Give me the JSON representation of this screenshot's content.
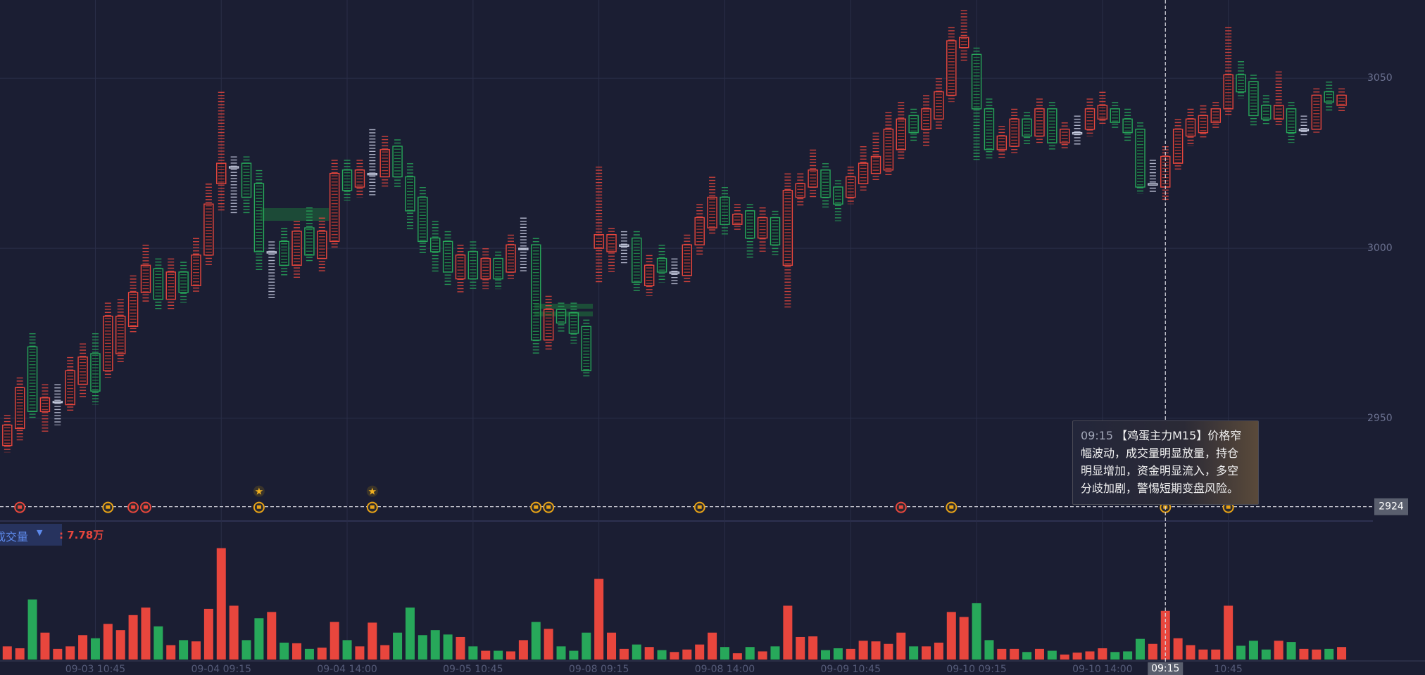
{
  "chart_data": {
    "type": "candlestick",
    "categories": [
      null,
      null,
      null,
      null,
      null,
      null,
      null,
      "09-03 10:45",
      null,
      null,
      null,
      null,
      null,
      null,
      null,
      null,
      null,
      "09-04 09:15",
      null,
      null,
      null,
      null,
      null,
      null,
      null,
      null,
      null,
      "09-04 14:00",
      null,
      null,
      null,
      null,
      null,
      null,
      null,
      null,
      null,
      "09-05 10:45",
      null,
      null,
      null,
      null,
      null,
      null,
      null,
      null,
      null,
      "09-08 09:15",
      null,
      null,
      null,
      null,
      null,
      null,
      null,
      null,
      null,
      "09-08 14:00",
      null,
      null,
      null,
      null,
      null,
      null,
      null,
      null,
      null,
      "09-09 10:45",
      null,
      null,
      null,
      null,
      null,
      null,
      null,
      null,
      null,
      "09-10 09:15",
      null,
      null,
      null,
      null,
      null,
      null,
      null,
      null,
      null,
      "09-10 14:00",
      null,
      null,
      null,
      null,
      null,
      null,
      null,
      null,
      null,
      "10:45",
      null,
      null,
      null,
      null,
      null,
      null,
      null,
      null,
      null
    ],
    "open": [
      2942,
      2947,
      2971,
      2952,
      2955,
      2954,
      2960,
      2969,
      2964,
      2969,
      2977,
      2987,
      2994,
      2985,
      2993,
      2989,
      2998,
      3019,
      3024,
      3025,
      3019,
      2999,
      3002,
      2995,
      3006,
      2997,
      3002,
      3023,
      3018,
      3022,
      3021,
      3030,
      3021,
      3015,
      3003,
      3002,
      2991,
      2999,
      2991,
      2997,
      2993,
      3000,
      3001,
      2973,
      2982,
      2981,
      2977,
      3000,
      2999,
      3001,
      3003,
      2989,
      2997,
      2993,
      2992,
      3001,
      3006,
      3015,
      3007,
      3011,
      3003,
      3009,
      2995,
      3015,
      3018,
      3023,
      3018,
      3015,
      3019,
      3022,
      3023,
      3029,
      3039,
      3035,
      3038,
      3045,
      3059,
      3057,
      3041,
      3029,
      3030,
      3038,
      3033,
      3041,
      3031,
      3034,
      3035,
      3038,
      3041,
      3038,
      3035,
      3019,
      3018,
      3025,
      3033,
      3034,
      3037,
      3041,
      3051,
      3049,
      3042,
      3038,
      3041,
      3035,
      3035,
      3046,
      3042
    ],
    "high": [
      2951,
      2962,
      2975,
      2960,
      2960,
      2968,
      2972,
      2975,
      2984,
      2985,
      2992,
      3001,
      2997,
      2997,
      2996,
      3003,
      3019,
      3046,
      3027,
      3027,
      3023,
      3002,
      3006,
      3008,
      3012,
      3009,
      3026,
      3026,
      3026,
      3035,
      3033,
      3032,
      3025,
      3018,
      3008,
      3005,
      3001,
      3002,
      3000,
      2999,
      3004,
      3009,
      3003,
      2986,
      2984,
      2984,
      2979,
      3024,
      3006,
      3005,
      3005,
      2998,
      3001,
      2997,
      3004,
      3013,
      3021,
      3018,
      3013,
      3013,
      3012,
      3011,
      3022,
      3022,
      3029,
      3025,
      3020,
      3024,
      3030,
      3034,
      3040,
      3043,
      3041,
      3045,
      3050,
      3065,
      3070,
      3059,
      3044,
      3036,
      3041,
      3040,
      3044,
      3043,
      3037,
      3039,
      3044,
      3046,
      3043,
      3041,
      3037,
      3026,
      3030,
      3038,
      3041,
      3042,
      3043,
      3065,
      3055,
      3051,
      3045,
      3052,
      3043,
      3039,
      3047,
      3049,
      3047
    ],
    "low": [
      2940,
      2943,
      2950,
      2946,
      2948,
      2952,
      2956,
      2954,
      2962,
      2966,
      2975,
      2984,
      2982,
      2982,
      2984,
      2987,
      2995,
      3011,
      3010,
      3010,
      2993,
      2985,
      2992,
      2991,
      2996,
      2993,
      3000,
      3014,
      3015,
      3015,
      3018,
      3018,
      3005,
      2998,
      2993,
      2989,
      2987,
      2988,
      2988,
      2988,
      2991,
      2993,
      2969,
      2970,
      2975,
      2972,
      2962,
      2990,
      2993,
      2995,
      2987,
      2986,
      2990,
      2989,
      2990,
      2998,
      3004,
      3004,
      3005,
      2997,
      2999,
      2998,
      2982,
      3012,
      3015,
      3012,
      3008,
      3013,
      3017,
      3020,
      3021,
      3026,
      3031,
      3030,
      3035,
      3043,
      3055,
      3026,
      3026,
      3026,
      3028,
      3030,
      3031,
      3029,
      3029,
      3030,
      3033,
      3036,
      3035,
      3031,
      3016,
      3016,
      3014,
      3023,
      3030,
      3032,
      3035,
      3039,
      3044,
      3036,
      3036,
      3036,
      3031,
      3033,
      3034,
      3040,
      3040
    ],
    "close": [
      2948,
      2959,
      2952,
      2956,
      2955,
      2964,
      2968,
      2958,
      2980,
      2980,
      2987,
      2995,
      2985,
      2993,
      2987,
      2998,
      3013,
      3025,
      3024,
      3015,
      2999,
      2999,
      2995,
      3005,
      2998,
      3005,
      3022,
      3017,
      3023,
      3022,
      3029,
      3021,
      3011,
      3002,
      2999,
      2993,
      2998,
      2991,
      2997,
      2991,
      3001,
      3000,
      2973,
      2982,
      2978,
      2975,
      2964,
      3004,
      3004,
      3001,
      2990,
      2995,
      2993,
      2993,
      3001,
      3009,
      3015,
      3007,
      3010,
      3003,
      3009,
      3001,
      3017,
      3019,
      3023,
      3015,
      3013,
      3021,
      3025,
      3027,
      3035,
      3038,
      3034,
      3041,
      3046,
      3061,
      3062,
      3041,
      3029,
      3033,
      3038,
      3033,
      3041,
      3031,
      3035,
      3034,
      3041,
      3042,
      3037,
      3034,
      3018,
      3019,
      3027,
      3035,
      3038,
      3039,
      3041,
      3051,
      3046,
      3039,
      3038,
      3042,
      3034,
      3035,
      3045,
      3043,
      3045
    ],
    "volume": [
      2.1,
      1.8,
      9.6,
      4.3,
      1.7,
      2.1,
      3.9,
      3.4,
      5.7,
      4.7,
      7.1,
      8.3,
      5.3,
      2.3,
      3.1,
      2.9,
      8.1,
      17.8,
      8.6,
      3.1,
      6.6,
      7.6,
      2.7,
      2.6,
      1.7,
      1.9,
      6.0,
      3.1,
      2.1,
      5.9,
      2.3,
      4.3,
      8.3,
      3.9,
      4.7,
      4.0,
      3.6,
      2.1,
      1.4,
      1.4,
      1.3,
      3.1,
      6.0,
      4.9,
      2.1,
      1.4,
      4.3,
      12.9,
      4.3,
      1.7,
      2.4,
      2.0,
      1.5,
      1.2,
      1.6,
      2.4,
      4.3,
      2.0,
      1.0,
      2.0,
      1.3,
      2.1,
      8.6,
      3.6,
      3.7,
      1.5,
      1.8,
      1.7,
      3.0,
      2.9,
      2.5,
      4.3,
      2.1,
      2.1,
      2.7,
      7.6,
      6.8,
      9.0,
      3.1,
      1.7,
      1.7,
      1.2,
      1.7,
      1.4,
      0.8,
      1.1,
      1.3,
      1.8,
      1.2,
      1.3,
      3.3,
      2.5,
      7.78,
      3.4,
      2.3,
      1.6,
      1.6,
      8.6,
      2.2,
      3.0,
      1.6,
      3.0,
      2.8,
      1.7,
      1.6,
      1.7,
      2.0
    ],
    "volume_ylim": [
      0,
      20
    ],
    "ylim": [
      2920,
      3073
    ],
    "yticks": [
      2950,
      3000,
      3050
    ],
    "grid": true,
    "up_color": "#e8463d",
    "down_color": "#27a85a",
    "flat_color": "#c9cee2",
    "price_line": {
      "value": 2924
    },
    "crosshair_label": "09:15",
    "volume_title": "成交量",
    "volume_readout": ": 7.78万",
    "tooltip": {
      "time": "09:15",
      "text": "【鸡蛋主力M15】价格窄幅波动，成交量明显放量，持仓明显增加，资金明显流入，多空分歧加剧，警惕短期变盘风险。"
    }
  }
}
